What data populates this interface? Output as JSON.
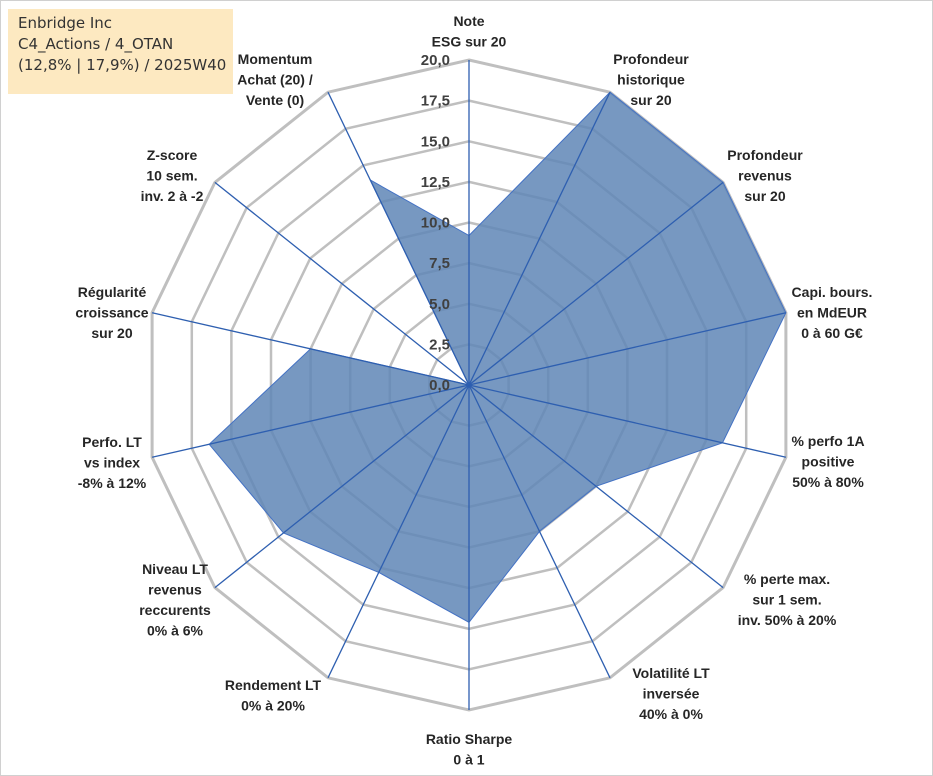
{
  "info_box": {
    "line1": "Enbridge Inc",
    "line2": "C4_Actions / 4_OTAN",
    "line3": "(12,8% | 17,9%) / 2025W40"
  },
  "colors": {
    "fill": "#5f86b6",
    "stroke": "#4472c4",
    "grid": "#bfbfbf",
    "spoke": "#2e5fb0",
    "info_bg": "#fde9c1"
  },
  "chart_data": {
    "type": "radar",
    "title": "",
    "range": [
      0,
      20
    ],
    "step": 2.5,
    "tick_labels": [
      "0,0",
      "2,5",
      "5,0",
      "7,5",
      "10,0",
      "12,5",
      "15,0",
      "17,5",
      "20,0"
    ],
    "axes": [
      {
        "label": [
          "Note",
          "ESG sur 20"
        ],
        "value": 9.2
      },
      {
        "label": [
          "Profondeur",
          "historique",
          "sur 20"
        ],
        "value": 20.0
      },
      {
        "label": [
          "Profondeur",
          "revenus",
          "sur 20"
        ],
        "value": 20.0
      },
      {
        "label": [
          "Capi. bours.",
          "en MdEUR",
          "0 à 60 G€"
        ],
        "value": 20.0
      },
      {
        "label": [
          "% perfo 1A",
          "positive",
          "50% à 80%"
        ],
        "value": 16.0
      },
      {
        "label": [
          "% perte max.",
          "sur 1 sem.",
          "inv. 50% à 20%"
        ],
        "value": 10.0
      },
      {
        "label": [
          "Volatilité LT",
          "inversée",
          "40% à 0%"
        ],
        "value": 10.0
      },
      {
        "label": [
          "Ratio Sharpe",
          "0 à 1"
        ],
        "value": 14.6
      },
      {
        "label": [
          "Rendement LT",
          "0% à 20%"
        ],
        "value": 12.8
      },
      {
        "label": [
          "Niveau LT",
          "revenus",
          "reccurents",
          "0% à 6%"
        ],
        "value": 14.6
      },
      {
        "label": [
          "Perfo. LT",
          "vs index",
          "-8% à 12%"
        ],
        "value": 16.4
      },
      {
        "label": [
          "Régularité",
          "croissance",
          "sur 20"
        ],
        "value": 10.0
      },
      {
        "label": [
          "Z-score",
          "10 sem.",
          "inv. 2 à -2"
        ],
        "value": 0.0
      },
      {
        "label": [
          "Momentum",
          "Achat (20) /",
          "Vente (0)"
        ],
        "value": 14.0
      }
    ]
  }
}
